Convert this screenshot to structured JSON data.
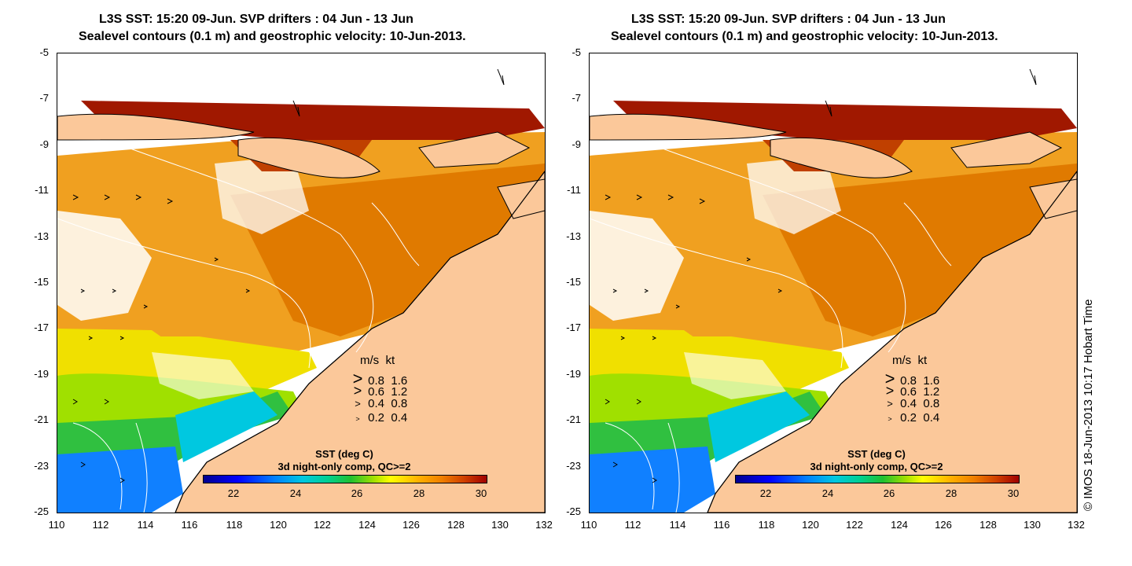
{
  "title_line1": "L3S SST: 15:20 09-Jun. SVP drifters : 04 Jun - 13 Jun",
  "title_line2": "Sealevel contours (0.1 m) and geostrophic velocity: 10-Jun-2013.",
  "y_ticks": [
    "-5",
    "-7",
    "-9",
    "-11",
    "-13",
    "-15",
    "-17",
    "-19",
    "-21",
    "-23",
    "-25"
  ],
  "x_ticks": [
    "110",
    "112",
    "114",
    "116",
    "118",
    "120",
    "122",
    "124",
    "126",
    "128",
    "130",
    "132"
  ],
  "velocity_legend": {
    "header_ms": "m/s",
    "header_kt": "kt",
    "rows": [
      {
        "ms": "0.8",
        "kt": "1.6",
        "arrow": ">"
      },
      {
        "ms": "0.6",
        "kt": "1.2",
        "arrow": ">"
      },
      {
        "ms": "0.4",
        "kt": "0.8",
        "arrow": ">"
      },
      {
        "ms": "0.2",
        "kt": "0.4",
        "arrow": ">"
      }
    ]
  },
  "colorbar": {
    "title1": "SST (deg C)",
    "title2": "3d night-only comp, QC>=2",
    "ticks": [
      "22",
      "24",
      "26",
      "28",
      "30"
    ]
  },
  "copyright": "© IMOS 18-Jun-2013 10:17 Hobart Time",
  "colors": {
    "land": "#fbc89a",
    "warm": "#e07a00",
    "hot": "#a01800",
    "green": "#30c040",
    "blue": "#1080ff",
    "yellow": "#f0e000"
  }
}
